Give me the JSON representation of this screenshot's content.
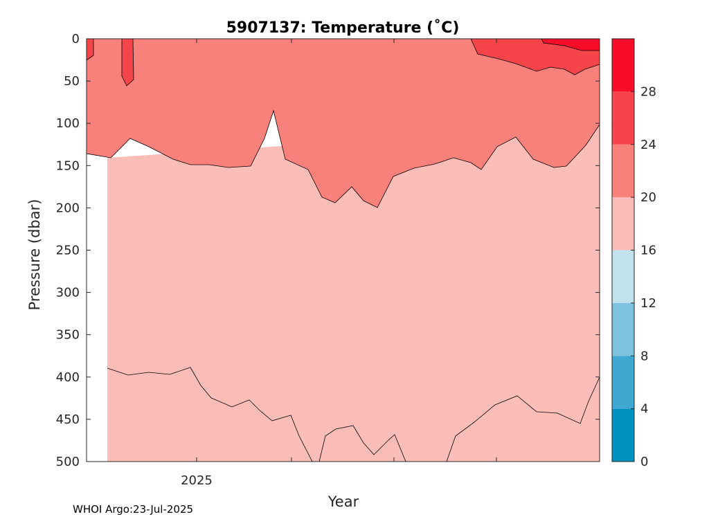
{
  "chart_data": {
    "type": "contour",
    "title": "5907137:  Temperature (˚C)",
    "xlabel": "Year",
    "ylabel": "Pressure (dbar)",
    "x_ticks": [
      "2025"
    ],
    "y_ticks": [
      "0",
      "50",
      "100",
      "150",
      "200",
      "250",
      "300",
      "350",
      "400",
      "450",
      "500"
    ],
    "ylim": [
      500,
      0
    ],
    "y_reversed": true,
    "colorbar": {
      "ticks": [
        "0",
        "4",
        "8",
        "12",
        "16",
        "20",
        "24",
        "28"
      ],
      "levels": [
        0,
        4,
        8,
        12,
        16,
        20,
        24,
        28,
        32
      ],
      "colors": [
        "#0092be",
        "#3fa8d0",
        "#7fc2df",
        "#c0e2ed",
        "#fbbdb7",
        "#f8817b",
        "#f5444a",
        "#f80d28"
      ]
    },
    "contour_isotherms": [
      {
        "level": 24,
        "description": "warm near-surface patches"
      },
      {
        "level": 20,
        "approx_depth_range_dbar": [
          85,
          200
        ]
      },
      {
        "level": 16,
        "approx_depth_range_dbar": [
          390,
          500
        ]
      }
    ],
    "credit": "WHOI Argo:23-Jul-2025"
  }
}
